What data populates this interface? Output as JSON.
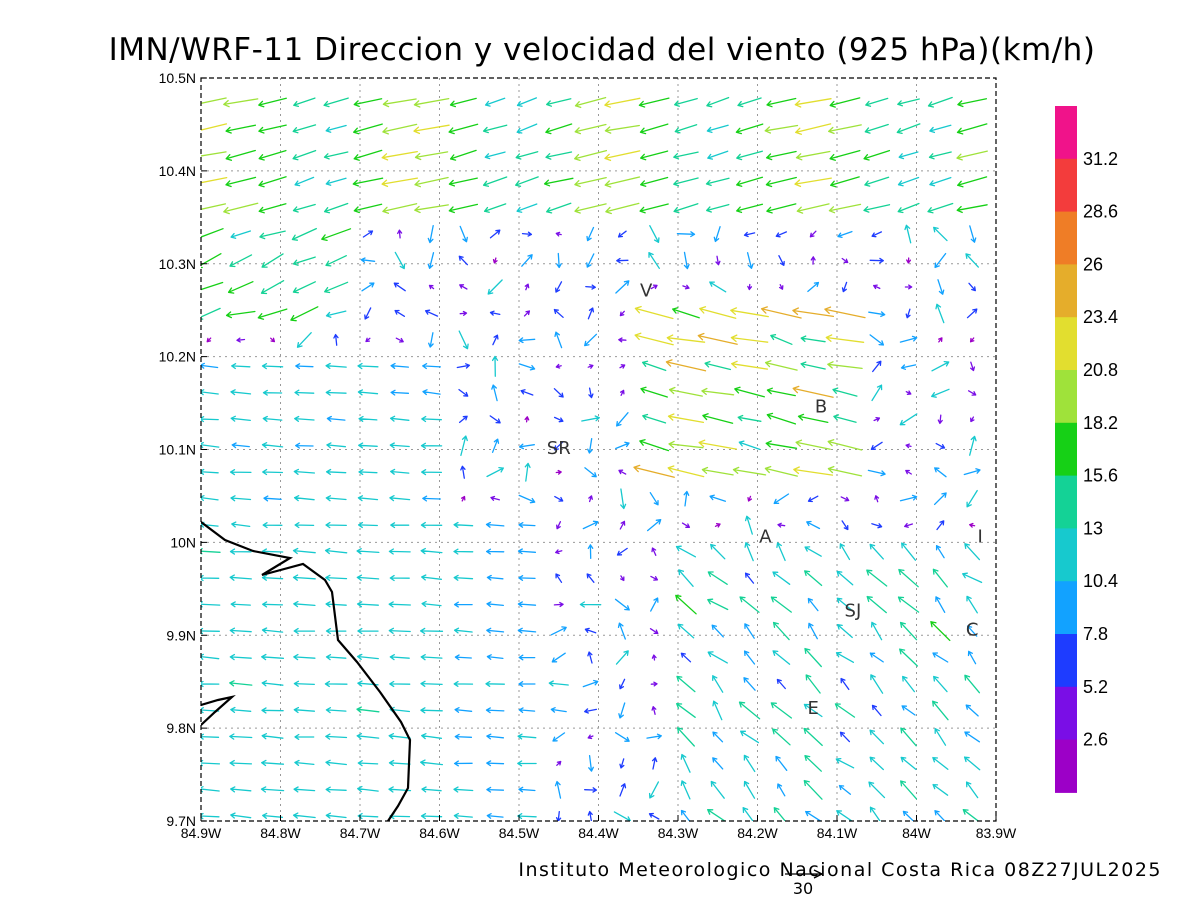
{
  "chart_data": {
    "type": "vector-field",
    "title": "IMN/WRF-11 Direccion y velocidad del viento (925 hPa)(km/h)",
    "x_ticks": [
      "84.9W",
      "84.8W",
      "84.7W",
      "84.6W",
      "84.5W",
      "84.4W",
      "84.3W",
      "84.2W",
      "84.1W",
      "84W",
      "83.9W"
    ],
    "y_ticks": [
      "10.5N",
      "10.4N",
      "10.3N",
      "10.2N",
      "10.1N",
      "10N",
      "9.9N",
      "9.8N",
      "9.7N"
    ],
    "xlim": [
      -84.9,
      -83.9
    ],
    "ylim": [
      9.7,
      10.5
    ],
    "colorbar": {
      "labels": [
        "31.2",
        "28.6",
        "26",
        "23.4",
        "20.8",
        "18.2",
        "15.6",
        "13",
        "10.4",
        "7.8",
        "5.2",
        "2.6"
      ],
      "colors": [
        "#f0138a",
        "#f33c3c",
        "#ef7d26",
        "#e5ad2b",
        "#e2de2f",
        "#9fe23a",
        "#16d016",
        "#14d296",
        "#17c9ce",
        "#12a2ff",
        "#1e3cff",
        "#7a0ee6",
        "#9c00c7"
      ]
    },
    "cities": [
      {
        "name": "V",
        "lon": -84.34,
        "lat": 10.265
      },
      {
        "name": "B",
        "lon": -84.12,
        "lat": 10.14
      },
      {
        "name": "SR",
        "lon": -84.45,
        "lat": 10.095
      },
      {
        "name": "A",
        "lon": -84.19,
        "lat": 10.0
      },
      {
        "name": "I",
        "lon": -83.92,
        "lat": 10.0
      },
      {
        "name": "SJ",
        "lon": -84.08,
        "lat": 9.92
      },
      {
        "name": "C",
        "lon": -83.93,
        "lat": 9.9
      },
      {
        "name": "E",
        "lon": -84.13,
        "lat": 9.815
      }
    ],
    "footer": "Instituto Meteorologico Nacional Costa Rica 08Z27JUL2025",
    "reference_vector": {
      "value": "30"
    }
  }
}
